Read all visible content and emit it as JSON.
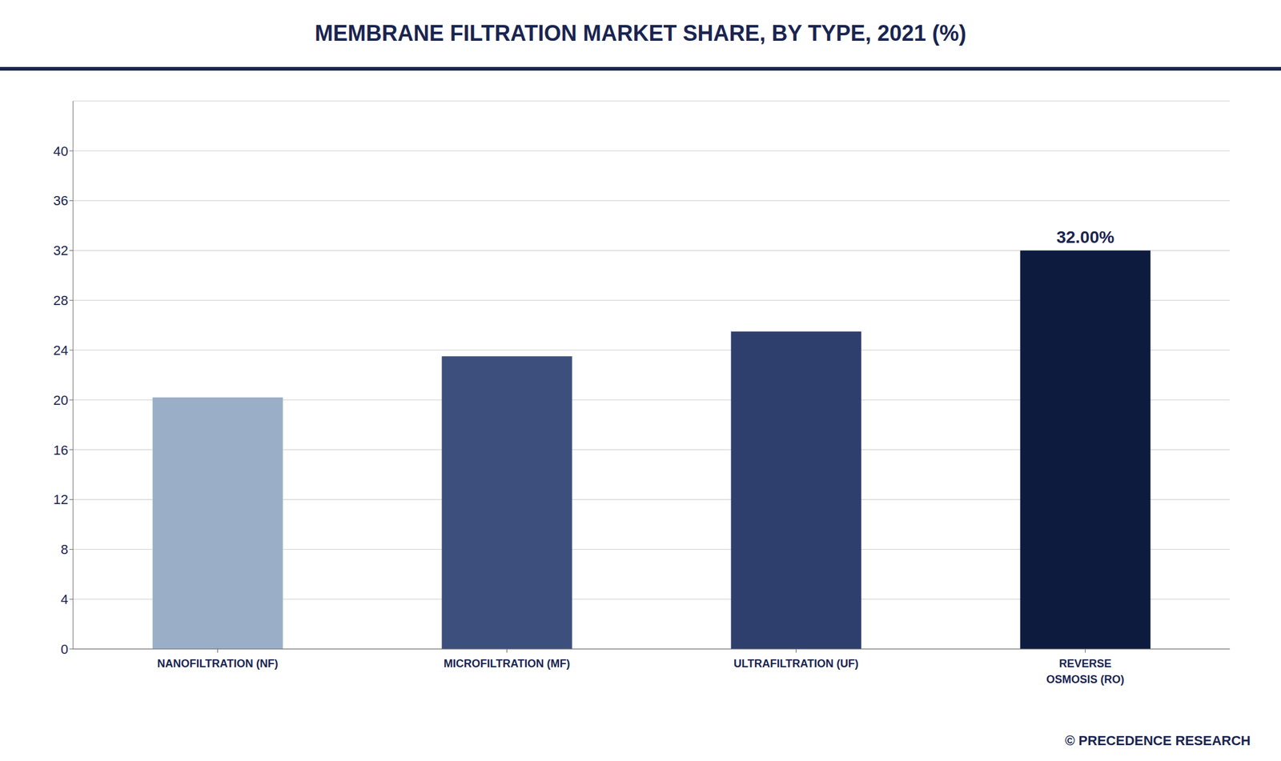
{
  "chart_data": {
    "type": "bar",
    "title": "MEMBRANE FILTRATION MARKET SHARE, BY TYPE, 2021 (%)",
    "categories": [
      "NANOFILTRATION (NF)",
      "MICROFILTRATION (MF)",
      "ULTRAFILTRATION (UF)",
      "REVERSE\nOSMOSIS (RO)"
    ],
    "values": [
      20.2,
      23.5,
      25.5,
      32.0
    ],
    "colors": [
      "#9aafc7",
      "#3d4f7c",
      "#2e3f6e",
      "#0d1b3e"
    ],
    "ylim": [
      0,
      44
    ],
    "yticks": [
      0,
      4,
      8,
      12,
      16,
      20,
      24,
      28,
      32,
      36,
      40
    ],
    "grid": true,
    "annotations": [
      {
        "text": "32.00%",
        "category": "REVERSE\nOSMOSIS (RO)"
      }
    ],
    "watermark": "© PRECEDENCE RESEARCH"
  }
}
